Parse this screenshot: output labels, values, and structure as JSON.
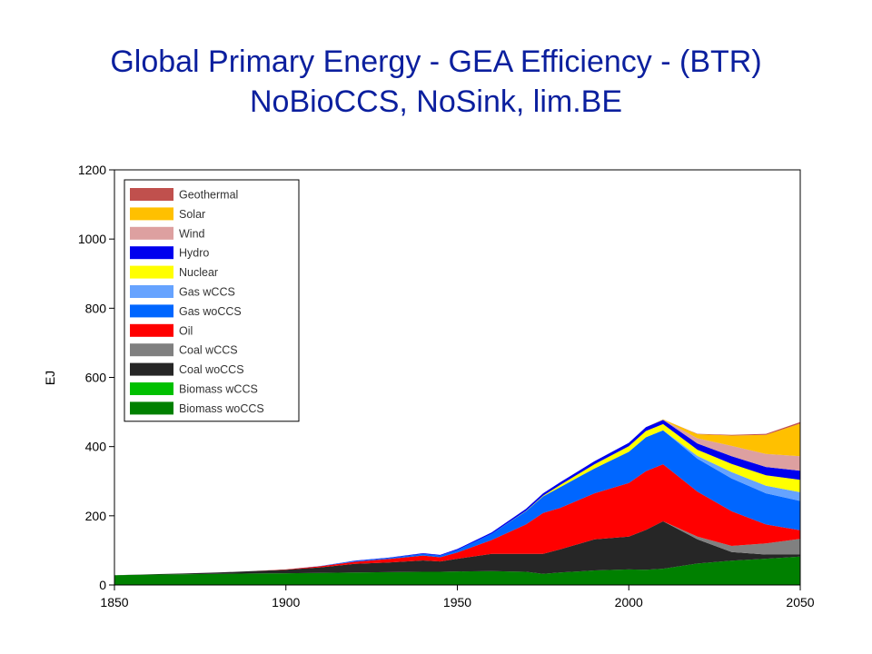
{
  "title_line1": "Global Primary Energy - GEA Efficiency - (BTR)",
  "title_line2": "NoBioCCS, NoSink, lim.BE",
  "chart_data": {
    "type": "area",
    "stacked": true,
    "ylabel": "EJ",
    "xlabel": "",
    "xlim": [
      1850,
      2050
    ],
    "ylim": [
      0,
      1200
    ],
    "x_ticks": [
      1850,
      1900,
      1950,
      2000,
      2050
    ],
    "y_ticks": [
      0,
      200,
      400,
      600,
      800,
      1000,
      1200
    ],
    "legend_position": "top-left",
    "x": [
      1850,
      1860,
      1870,
      1880,
      1890,
      1900,
      1910,
      1920,
      1930,
      1940,
      1945,
      1950,
      1960,
      1970,
      1975,
      1980,
      1990,
      2000,
      2005,
      2010,
      2020,
      2030,
      2040,
      2050
    ],
    "series": [
      {
        "name": "Biomass woCCS",
        "color": "#008000",
        "values": [
          28,
          30,
          31,
          32,
          33,
          34,
          35,
          36,
          37,
          38,
          38,
          39,
          40,
          38,
          32,
          36,
          42,
          45,
          44,
          47,
          62,
          70,
          76,
          82
        ]
      },
      {
        "name": "Biomass wCCS",
        "color": "#00c000",
        "values": [
          0,
          0,
          0,
          0,
          0,
          0,
          0,
          0,
          0,
          0,
          0,
          0,
          0,
          0,
          0,
          0,
          0,
          0,
          0,
          0,
          0,
          0,
          0,
          0
        ]
      },
      {
        "name": "Coal woCCS",
        "color": "#262626",
        "values": [
          0,
          1,
          2,
          4,
          7,
          10,
          16,
          25,
          28,
          33,
          30,
          37,
          50,
          52,
          58,
          67,
          90,
          95,
          115,
          137,
          70,
          25,
          12,
          6
        ]
      },
      {
        "name": "Coal wCCS",
        "color": "#808080",
        "values": [
          0,
          0,
          0,
          0,
          0,
          0,
          0,
          0,
          0,
          0,
          0,
          0,
          0,
          0,
          0,
          0,
          0,
          0,
          0,
          0,
          8,
          18,
          32,
          45
        ]
      },
      {
        "name": "Oil",
        "color": "#ff0000",
        "values": [
          0,
          0,
          0,
          0,
          0,
          1,
          3,
          6,
          10,
          14,
          12,
          18,
          40,
          85,
          118,
          120,
          133,
          155,
          170,
          165,
          130,
          100,
          55,
          25
        ]
      },
      {
        "name": "Gas woCCS",
        "color": "#0066ff",
        "values": [
          0,
          0,
          0,
          0,
          0,
          0,
          1,
          2,
          3,
          5,
          5,
          7,
          18,
          38,
          48,
          60,
          72,
          90,
          98,
          98,
          95,
          95,
          90,
          85
        ]
      },
      {
        "name": "Gas wCCS",
        "color": "#66a3ff",
        "values": [
          0,
          0,
          0,
          0,
          0,
          0,
          0,
          0,
          0,
          0,
          0,
          0,
          0,
          0,
          0,
          0,
          0,
          0,
          0,
          0,
          8,
          18,
          22,
          25
        ]
      },
      {
        "name": "Nuclear",
        "color": "#ffff00",
        "values": [
          0,
          0,
          0,
          0,
          0,
          0,
          0,
          0,
          0,
          0,
          0,
          0,
          0,
          1,
          2,
          6,
          12,
          16,
          18,
          18,
          18,
          24,
          30,
          36
        ]
      },
      {
        "name": "Hydro",
        "color": "#0000ee",
        "values": [
          0,
          0,
          0,
          0,
          0,
          0,
          0,
          1,
          1,
          2,
          2,
          3,
          4,
          6,
          7,
          8,
          9,
          10,
          11,
          12,
          18,
          22,
          24,
          26
        ]
      },
      {
        "name": "Wind",
        "color": "#dda0a0",
        "values": [
          0,
          0,
          0,
          0,
          0,
          0,
          0,
          0,
          0,
          0,
          0,
          0,
          0,
          0,
          0,
          0,
          0,
          0,
          0,
          1,
          15,
          30,
          38,
          42
        ]
      },
      {
        "name": "Solar",
        "color": "#ffc000",
        "values": [
          0,
          0,
          0,
          0,
          0,
          0,
          0,
          0,
          0,
          0,
          0,
          0,
          0,
          0,
          0,
          0,
          0,
          0,
          0,
          1,
          12,
          30,
          55,
          95
        ]
      },
      {
        "name": "Geothermal",
        "color": "#c0504d",
        "values": [
          0,
          0,
          0,
          0,
          0,
          0,
          0,
          0,
          0,
          0,
          0,
          0,
          0,
          0,
          0,
          0,
          0,
          0,
          0,
          0,
          1,
          2,
          3,
          4
        ]
      }
    ]
  }
}
